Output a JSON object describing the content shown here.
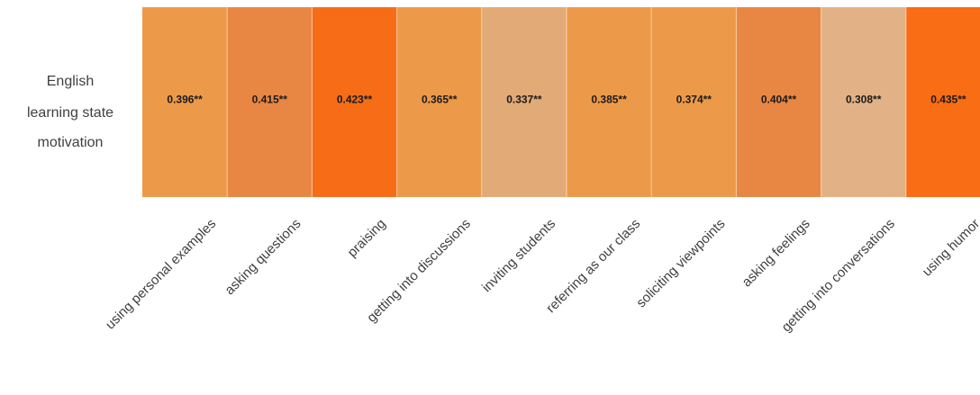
{
  "chart_data": {
    "type": "heatmap",
    "row_label_lines": [
      "English",
      "learning state",
      "motivation"
    ],
    "columns": [
      "using personal examples",
      "asking questions",
      "praising",
      "getting into discussions",
      "inviting students",
      "referring as our class",
      "soliciting viewpoints",
      "asking feelings",
      "getting into conversations",
      "using humor"
    ],
    "values": [
      0.396,
      0.415,
      0.423,
      0.365,
      0.337,
      0.385,
      0.374,
      0.404,
      0.308,
      0.435
    ],
    "value_labels": [
      "0.396**",
      "0.415**",
      "0.423**",
      "0.365**",
      "0.337**",
      "0.385**",
      "0.374**",
      "0.404**",
      "0.308**",
      "0.435**"
    ],
    "cell_colors": [
      "#EC9A49",
      "#E88744",
      "#F76D17",
      "#EC9A49",
      "#E2AA77",
      "#EC9A49",
      "#EC9A49",
      "#E88744",
      "#E2B286",
      "#F96D15"
    ]
  }
}
